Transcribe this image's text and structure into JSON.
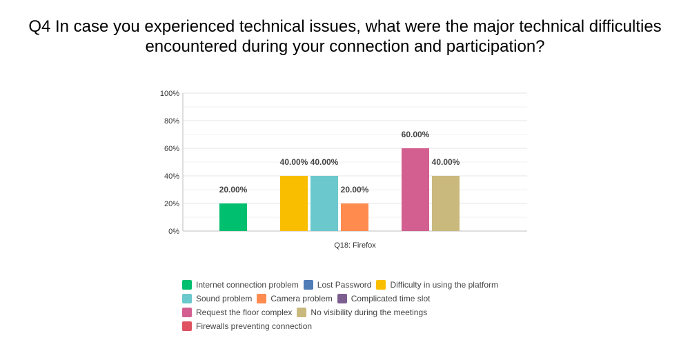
{
  "title": {
    "line1": "Q4 In case you experienced technical issues, what were the major technical difficulties",
    "line2": "encountered during your connection and participation?"
  },
  "chart_data": {
    "type": "bar",
    "categories": [
      "Q18: Firefox"
    ],
    "ylim": [
      0,
      100
    ],
    "yticks": [
      "0%",
      "20%",
      "40%",
      "60%",
      "80%",
      "100%"
    ],
    "grid": true,
    "legend_position": "bottom",
    "series": [
      {
        "name": "Internet connection problem",
        "color": "#00BF6F",
        "values": [
          20
        ],
        "label": "20.00%"
      },
      {
        "name": "Lost Password",
        "color": "#507CB6",
        "values": [
          0
        ],
        "label": ""
      },
      {
        "name": "Difficulty in using the platform",
        "color": "#F9BE00",
        "values": [
          40
        ],
        "label": "40.00%"
      },
      {
        "name": "Sound problem",
        "color": "#6BC8CD",
        "values": [
          40
        ],
        "label": "40.00%"
      },
      {
        "name": "Camera problem",
        "color": "#FF8B4F",
        "values": [
          20
        ],
        "label": "20.00%"
      },
      {
        "name": "Complicated time slot",
        "color": "#7D5E90",
        "values": [
          0
        ],
        "label": ""
      },
      {
        "name": "Request the floor complex",
        "color": "#D25F90",
        "values": [
          60
        ],
        "label": "60.00%"
      },
      {
        "name": "No visibility during the meetings",
        "color": "#C9B97D",
        "values": [
          40
        ],
        "label": "40.00%"
      },
      {
        "name": "Firewalls preventing connection",
        "color": "#E05260",
        "values": [
          0
        ],
        "label": ""
      }
    ]
  }
}
